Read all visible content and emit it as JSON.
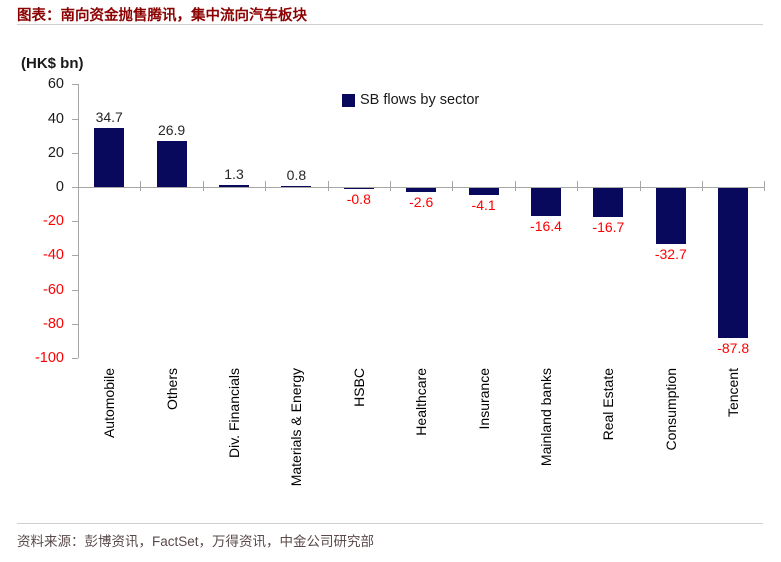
{
  "figure": {
    "title": "图表：南向资金抛售腾讯，集中流向汽车板块",
    "source": "资料来源：彭博资讯，FactSet，万得资讯，中金公司研究部"
  },
  "chart_data": {
    "type": "bar",
    "title": "SB flows by sector",
    "legend": "SB flows by sector",
    "unit_label": "(HK$ bn)",
    "categories": [
      "Automobile",
      "Others",
      "Div. Financials",
      "Materials & Energy",
      "HSBC",
      "Healthcare",
      "Insurance",
      "Mainland banks",
      "Real Estate",
      "Consumption",
      "Tencent"
    ],
    "values": [
      34.7,
      26.9,
      1.3,
      0.8,
      -0.8,
      -2.6,
      -4.1,
      -16.4,
      -16.7,
      -32.7,
      -87.8
    ],
    "ylim": [
      -100,
      60
    ],
    "y_ticks": [
      60,
      40,
      20,
      0,
      -20,
      -40,
      -60,
      -80,
      -100
    ],
    "grid": false,
    "legend_position": "top-center",
    "colors": {
      "bar": "#08085c",
      "positive_value_label": "#262626",
      "negative_value_label": "#ff0000",
      "positive_tick_label": "#1a1a1a",
      "negative_tick_label": "#ff0000",
      "axis": "#a6a6a6",
      "title": "#8b0000"
    }
  }
}
